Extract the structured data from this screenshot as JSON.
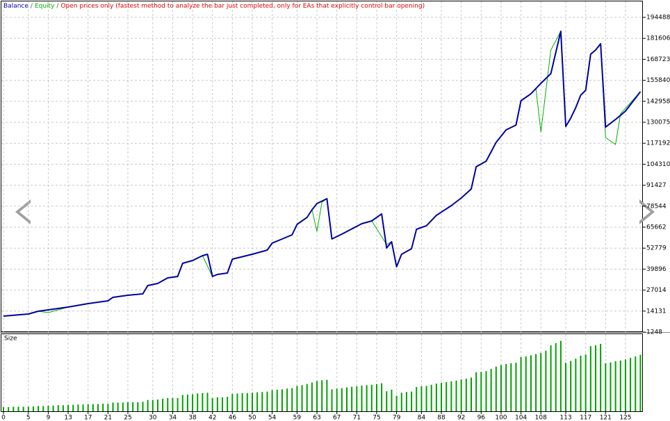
{
  "chart_data": [
    {
      "type": "line",
      "mode": "Open prices only (fastest method to analyze the bar just completed, only for EAs that explicitly control bar opening)",
      "separator": "/",
      "mode_color": "#e00000",
      "ylim": [
        1248,
        204300
      ],
      "yticks": [
        1248,
        14131,
        27014,
        39896,
        52779,
        65662,
        78544,
        91427,
        104310,
        117192,
        130075,
        142958,
        155840,
        168723,
        181606,
        194488
      ],
      "grid": true,
      "series": [
        {
          "name": "Balance",
          "color": "#0000a0",
          "x": [
            0,
            5,
            7,
            9,
            13,
            17,
            21,
            22,
            25,
            28,
            29,
            31,
            33,
            35,
            36,
            38,
            40,
            41,
            42,
            43,
            45,
            46,
            50,
            53,
            54,
            56,
            58,
            59,
            61,
            62,
            63,
            65,
            66,
            68,
            72,
            74,
            76,
            77,
            78,
            79,
            80,
            82,
            83,
            85,
            87,
            90,
            92,
            94,
            95,
            97,
            99,
            101,
            103,
            104,
            106,
            108,
            109,
            110,
            112,
            113,
            114,
            115,
            116,
            117,
            118,
            119,
            120,
            121,
            123,
            125,
            128
          ],
          "values": [
            11060,
            12340,
            14050,
            14900,
            16600,
            18740,
            20440,
            22580,
            23860,
            24710,
            29830,
            31110,
            34520,
            35380,
            43480,
            45190,
            48180,
            49030,
            35380,
            36660,
            37510,
            46040,
            49030,
            51590,
            55860,
            58410,
            60970,
            67370,
            71640,
            76330,
            80170,
            83160,
            58410,
            61400,
            67800,
            69500,
            73770,
            52870,
            56710,
            41350,
            49030,
            52440,
            64380,
            66520,
            72920,
            78890,
            83580,
            89130,
            102780,
            106190,
            117710,
            125390,
            128370,
            143300,
            147570,
            153970,
            156960,
            159940,
            185970,
            127520,
            132640,
            139040,
            146720,
            149700,
            171890,
            174450,
            178290,
            127100,
            131790,
            136910,
            148860
          ]
        },
        {
          "name": "Equity",
          "color": "#00b000",
          "x": [
            0,
            5,
            7,
            9,
            11,
            13,
            17,
            21,
            22,
            25,
            28,
            29,
            31,
            33,
            35,
            36,
            38,
            40,
            42,
            43,
            45,
            46,
            50,
            53,
            54,
            56,
            58,
            59,
            61,
            62,
            63,
            64,
            65,
            66,
            68,
            72,
            74,
            77,
            78,
            79,
            80,
            82,
            83,
            85,
            87,
            90,
            92,
            94,
            95,
            97,
            99,
            101,
            103,
            104,
            106,
            107,
            108,
            110,
            112,
            113,
            114,
            115,
            116,
            117,
            118,
            119,
            120,
            121,
            123,
            124,
            128
          ],
          "values": [
            11060,
            12340,
            14050,
            13190,
            14900,
            16600,
            18740,
            20440,
            22580,
            23860,
            24710,
            29830,
            31110,
            34520,
            35380,
            43480,
            45190,
            48180,
            35380,
            36660,
            37510,
            46040,
            49030,
            51590,
            55860,
            58410,
            60970,
            67370,
            71640,
            76330,
            63110,
            81000,
            83160,
            58410,
            61400,
            67800,
            69500,
            55000,
            56710,
            41350,
            49030,
            52440,
            64380,
            66520,
            72920,
            78890,
            83580,
            89130,
            102780,
            106190,
            117710,
            125390,
            128370,
            143300,
            147570,
            151000,
            124110,
            174450,
            185970,
            127520,
            132640,
            139040,
            146720,
            149700,
            171890,
            174450,
            178290,
            120700,
            116430,
            135200,
            148860
          ]
        }
      ]
    },
    {
      "type": "bar",
      "title": "Size",
      "color": "#00a000",
      "xlim": [
        0,
        128.5
      ],
      "xticks": [
        0,
        5,
        9,
        13,
        17,
        21,
        25,
        30,
        34,
        38,
        42,
        46,
        50,
        54,
        59,
        63,
        67,
        71,
        75,
        79,
        84,
        88,
        92,
        96,
        100,
        104,
        108,
        113,
        117,
        121,
        125
      ],
      "ylim": [
        0,
        2.0
      ],
      "values": [
        0.11,
        0.11,
        0.12,
        0.12,
        0.12,
        0.12,
        0.13,
        0.14,
        0.14,
        0.15,
        0.15,
        0.16,
        0.16,
        0.17,
        0.17,
        0.18,
        0.18,
        0.19,
        0.19,
        0.19,
        0.2,
        0.2,
        0.23,
        0.23,
        0.23,
        0.24,
        0.24,
        0.24,
        0.25,
        0.3,
        0.3,
        0.31,
        0.33,
        0.35,
        0.35,
        0.35,
        0.43,
        0.44,
        0.45,
        0.47,
        0.48,
        0.49,
        0.35,
        0.37,
        0.37,
        0.38,
        0.46,
        0.47,
        0.48,
        0.48,
        0.49,
        0.5,
        0.51,
        0.52,
        0.56,
        0.57,
        0.58,
        0.6,
        0.61,
        0.67,
        0.69,
        0.72,
        0.76,
        0.8,
        0.82,
        0.83,
        0.58,
        0.6,
        0.61,
        0.63,
        0.65,
        0.66,
        0.68,
        0.69,
        0.7,
        0.72,
        0.74,
        0.53,
        0.57,
        0.41,
        0.49,
        0.51,
        0.52,
        0.64,
        0.66,
        0.67,
        0.7,
        0.73,
        0.75,
        0.77,
        0.79,
        0.81,
        0.84,
        0.86,
        0.89,
        1.03,
        1.04,
        1.06,
        1.12,
        1.18,
        1.22,
        1.25,
        1.27,
        1.28,
        1.43,
        1.45,
        1.48,
        1.51,
        1.54,
        1.6,
        1.74,
        1.8,
        1.86,
        1.28,
        1.33,
        1.39,
        1.47,
        1.5,
        1.72,
        1.74,
        1.78,
        1.27,
        1.29,
        1.32,
        1.34,
        1.37,
        1.41,
        1.45,
        1.49
      ]
    }
  ]
}
